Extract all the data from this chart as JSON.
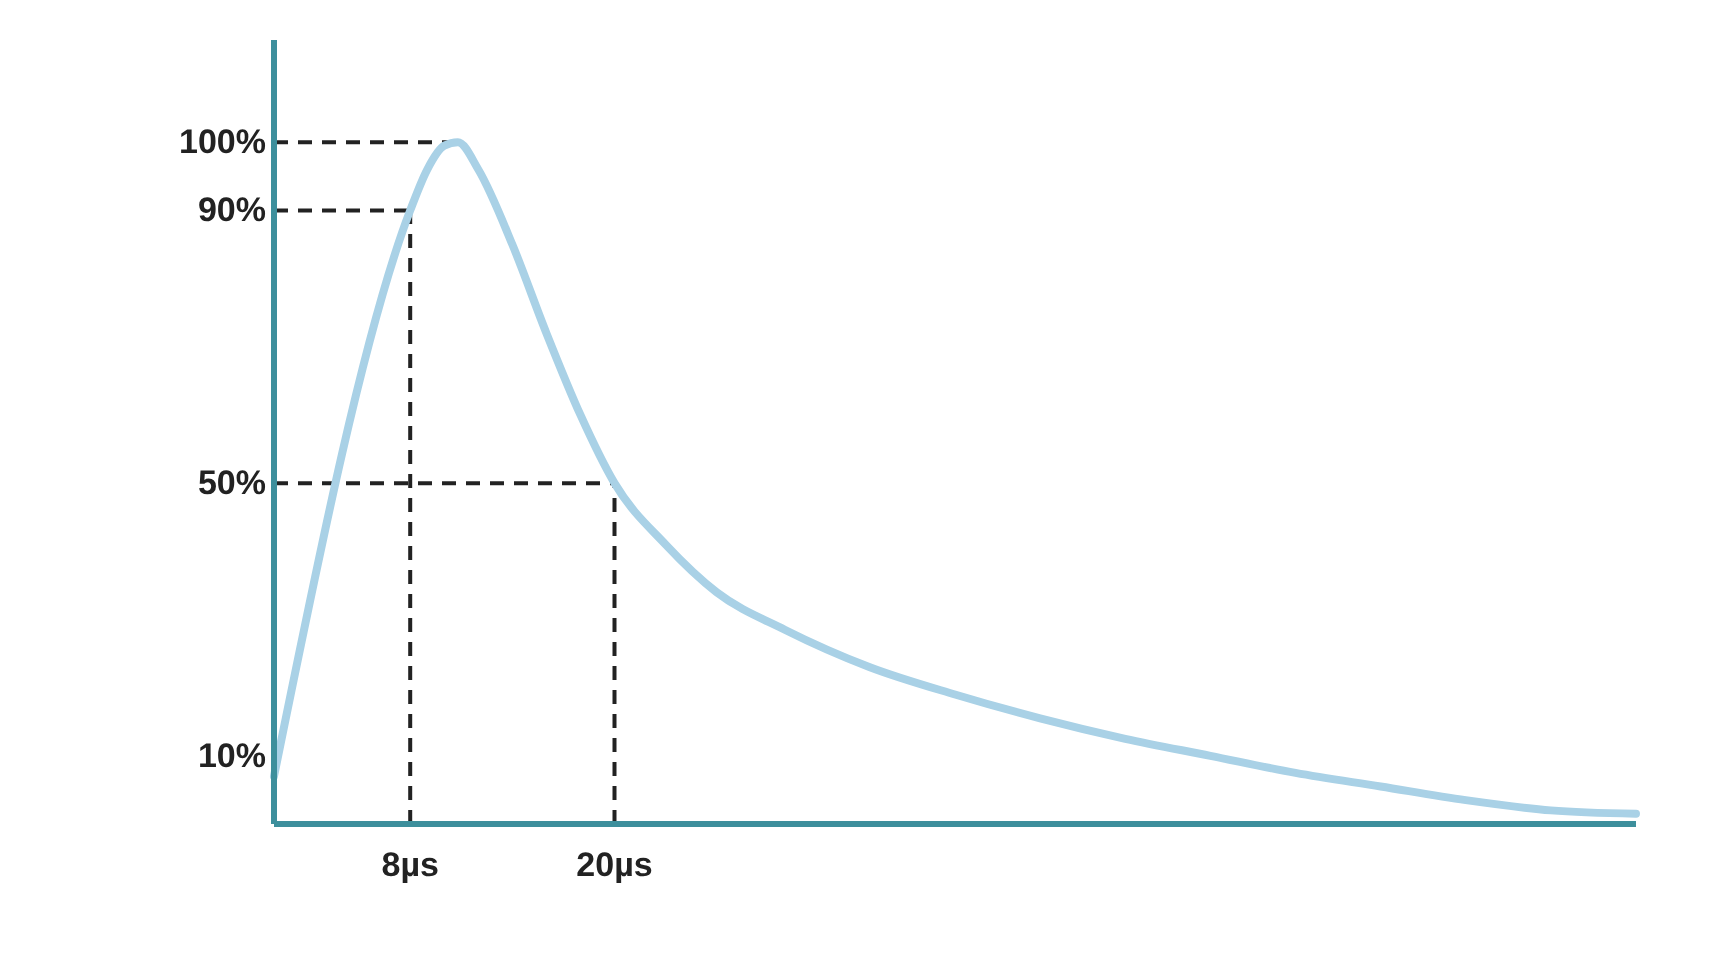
{
  "chart_data": {
    "type": "line",
    "x": [
      0,
      8,
      9,
      10,
      10.8,
      12,
      14,
      16,
      18,
      20,
      23,
      26,
      30,
      35,
      40,
      45,
      50,
      55,
      60,
      65,
      70,
      75,
      80
    ],
    "series": [
      {
        "color": "#a9d1e6",
        "values": [
          7,
          90,
          96,
          99.5,
          100,
          96,
          85,
          72,
          60,
          50,
          41,
          34,
          28.5,
          23,
          19,
          15.5,
          12.5,
          10,
          7.5,
          5.5,
          3.5,
          2,
          1.5
        ]
      }
    ],
    "xlim": [
      0,
      80
    ],
    "ylim": [
      0,
      115
    ],
    "xticks": [
      {
        "value": 8,
        "label": "8µs"
      },
      {
        "value": 20,
        "label": "20µs"
      }
    ],
    "yticks": [
      {
        "value": 10,
        "label": "10%"
      },
      {
        "value": 50,
        "label": "50%"
      },
      {
        "value": 90,
        "label": "90%"
      },
      {
        "value": 100,
        "label": "100%"
      }
    ],
    "ref_lines": [
      {
        "axis": "y",
        "value": 100,
        "color": "#222222",
        "line_style": "dashed"
      },
      {
        "axis": "y",
        "value": 90,
        "color": "#222222",
        "line_style": "dashed"
      },
      {
        "axis": "y",
        "value": 50,
        "color": "#222222",
        "line_style": "dashed"
      },
      {
        "axis": "x",
        "value": 8,
        "color": "#222222",
        "line_style": "dashed"
      },
      {
        "axis": "x",
        "value": 20,
        "color": "#222222",
        "line_style": "dashed"
      }
    ],
    "marker": "none",
    "line_style": "solid"
  }
}
